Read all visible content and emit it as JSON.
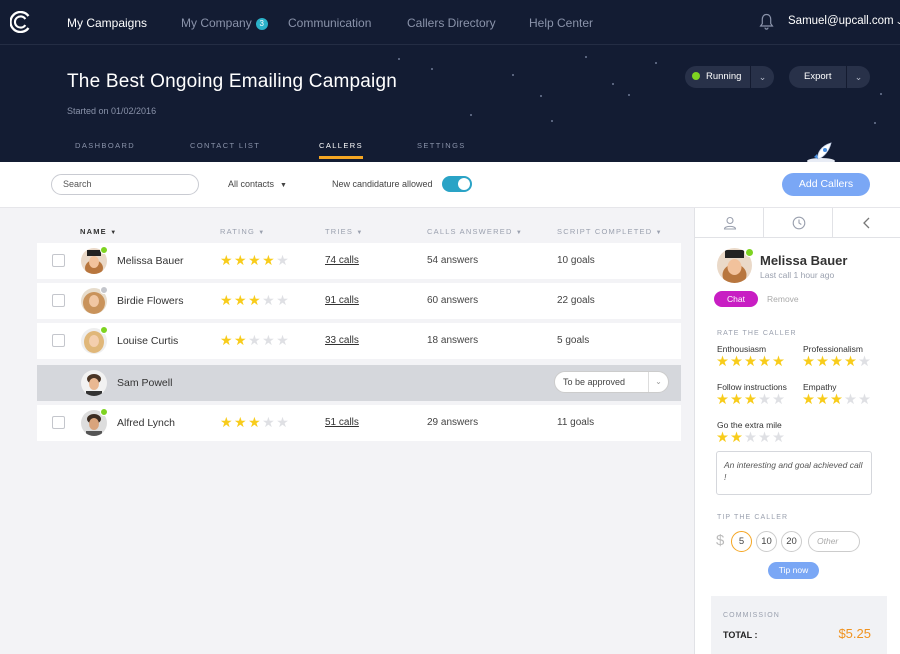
{
  "nav": {
    "items": [
      {
        "label": "My Campaigns"
      },
      {
        "label": "My Company",
        "badge": "3"
      },
      {
        "label": "Communication"
      },
      {
        "label": "Callers Directory"
      },
      {
        "label": "Help Center"
      }
    ],
    "user_email": "Samuel@upcall.com"
  },
  "campaign": {
    "title": "The Best Ongoing Emailing Campaign",
    "started": "Started on 01/02/2016",
    "status": "Running",
    "export_label": "Export"
  },
  "subtabs": [
    "DASHBOARD",
    "CONTACT LIST",
    "CALLERS",
    "SETTINGS"
  ],
  "toolbar": {
    "search_placeholder": "Search",
    "contacts_filter": "All contacts",
    "candidature_label": "New candidature allowed",
    "candidature_enabled": true,
    "add_callers_label": "Add Callers"
  },
  "table": {
    "columns": [
      "NAME",
      "RATING",
      "TRIES",
      "CALLS ANSWERED",
      "SCRIPT COMPLETED"
    ],
    "rows": [
      {
        "name": "Melissa Bauer",
        "rating": 4,
        "tries": "74 calls",
        "answers": "54 answers",
        "goals": "10 goals",
        "status": "online"
      },
      {
        "name": "Birdie Flowers",
        "rating": 3,
        "tries": "91 calls",
        "answers": "60 answers",
        "goals": "22 goals",
        "status": "offline"
      },
      {
        "name": "Louise Curtis",
        "rating": 2,
        "tries": "33 calls",
        "answers": "18 answers",
        "goals": "5 goals",
        "status": "online"
      },
      {
        "name": "Sam Powell",
        "rating": 0,
        "approval": "To be approved"
      },
      {
        "name": "Alfred Lynch",
        "rating": 3,
        "tries": "51 calls",
        "answers": "29 answers",
        "goals": "11 goals",
        "status": "online"
      }
    ]
  },
  "panel": {
    "name": "Melissa Bauer",
    "last_call": "Last call 1 hour ago",
    "chat_label": "Chat",
    "remove_label": "Remove",
    "rate_title": "RATE THE CALLER",
    "criteria": [
      {
        "label": "Enthousiasm",
        "rating": 5
      },
      {
        "label": "Professionalism",
        "rating": 4
      },
      {
        "label": "Follow instructions",
        "rating": 3
      },
      {
        "label": "Empathy",
        "rating": 3
      },
      {
        "label": "Go the extra mile",
        "rating": 2
      }
    ],
    "comment": "An interesting and goal achieved call !",
    "tip_title": "TIP THE CALLER",
    "currency": "$",
    "tip_options": [
      "5",
      "10",
      "20"
    ],
    "tip_selected": "5",
    "tip_other_placeholder": "Other",
    "tip_now_label": "Tip now",
    "commission_title": "COMMISSION",
    "total_label": "TOTAL :",
    "total_value": "$5.25"
  },
  "colors": {
    "accent": "#f5a623",
    "online": "#7ed321",
    "primary_button": "#7aa7f5",
    "chat": "#c81ec3",
    "star": "#f8cc1b",
    "toggle": "#2aa3c6"
  }
}
